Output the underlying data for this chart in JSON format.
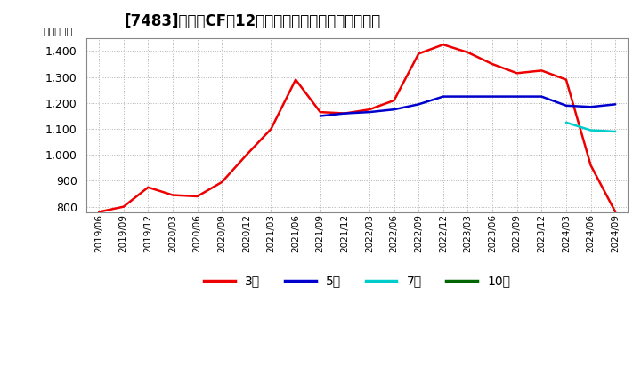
{
  "title": "[7483]　営業CFの12か月移動合計の標準偏差の推移",
  "ylabel": "（百万円）",
  "ylim": [
    780,
    1450
  ],
  "yticks": [
    800,
    900,
    1000,
    1100,
    1200,
    1300,
    1400
  ],
  "background_color": "#ffffff",
  "plot_bg_color": "#ffffff",
  "grid_color": "#aaaaaa",
  "legend_labels": [
    "3年",
    "5年",
    "7年",
    "10年"
  ],
  "legend_colors": [
    "#ee0000",
    "#0000cc",
    "#00cccc",
    "#006600"
  ],
  "x_labels": [
    "2019/06",
    "2019/09",
    "2019/12",
    "2020/03",
    "2020/06",
    "2020/09",
    "2020/12",
    "2021/03",
    "2021/06",
    "2021/09",
    "2021/12",
    "2022/03",
    "2022/06",
    "2022/09",
    "2022/12",
    "2023/03",
    "2023/06",
    "2023/09",
    "2023/12",
    "2024/03",
    "2024/06",
    "2024/09"
  ],
  "series_3y": [
    780,
    800,
    875,
    845,
    840,
    895,
    1000,
    1100,
    1290,
    1165,
    1160,
    1175,
    1210,
    1390,
    1425,
    1395,
    1350,
    1315,
    1325,
    1290,
    960,
    780
  ],
  "series_5y": [
    null,
    null,
    null,
    null,
    null,
    null,
    null,
    null,
    null,
    1150,
    1160,
    1165,
    1175,
    1195,
    1225,
    1225,
    1225,
    1225,
    1225,
    1190,
    1185,
    1195
  ],
  "series_7y": [
    null,
    null,
    null,
    null,
    null,
    null,
    null,
    null,
    null,
    null,
    null,
    null,
    null,
    null,
    null,
    null,
    null,
    null,
    null,
    1125,
    1095,
    1090
  ],
  "series_10y": [
    null,
    null,
    null,
    null,
    null,
    null,
    null,
    null,
    null,
    null,
    null,
    null,
    null,
    null,
    null,
    null,
    null,
    null,
    null,
    null,
    null,
    null
  ]
}
